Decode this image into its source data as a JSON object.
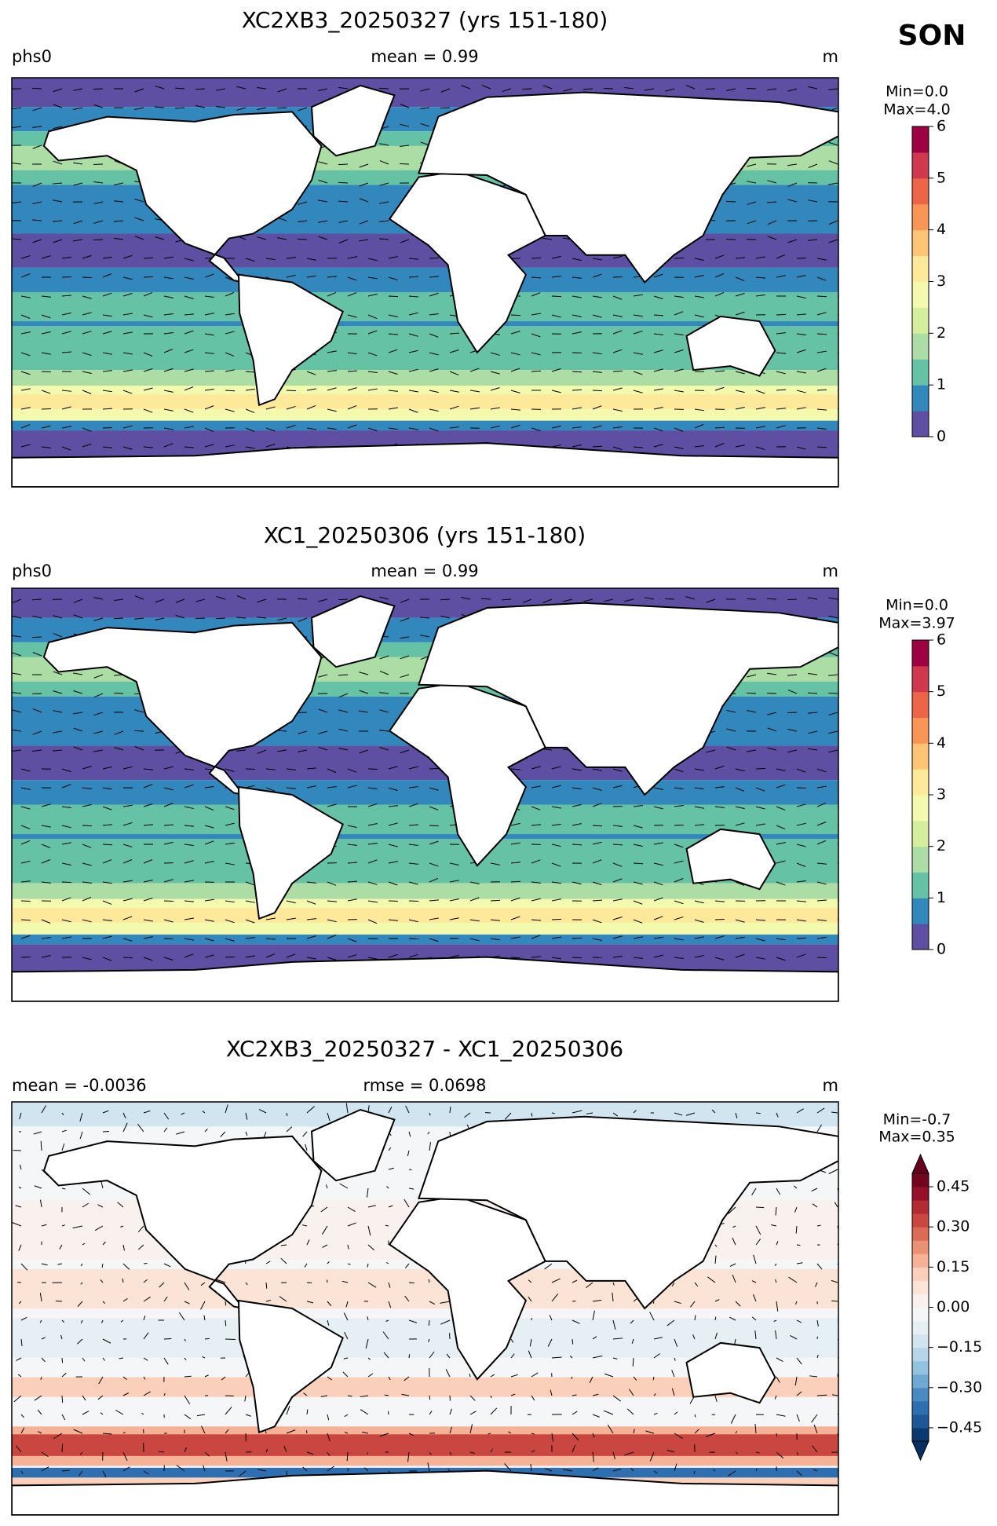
{
  "title": "SON",
  "panels": [
    {
      "title": "XC2XB3_20250327 (yrs 151-180)",
      "left_label": "phs0",
      "center_label": "mean = 0.99",
      "right_label": "m",
      "stats": [
        "Min=0.0",
        "Max=4.0"
      ],
      "colorbar": {
        "lim": [
          0,
          6
        ],
        "ticks": [
          0,
          1,
          2,
          3,
          4,
          5,
          6
        ],
        "extend": false,
        "colors": [
          "#5e4fa2",
          "#3288bd",
          "#66c2a5",
          "#abdda4",
          "#d5ee9b",
          "#f4faad",
          "#fee99b",
          "#fdc574",
          "#f99555",
          "#ec6547",
          "#d0384e",
          "#9e0142"
        ]
      }
    },
    {
      "title": "XC1_20250306 (yrs 151-180)",
      "left_label": "phs0",
      "center_label": "mean = 0.99",
      "right_label": "m",
      "stats": [
        "Min=0.0",
        "Max=3.97"
      ],
      "colorbar": {
        "lim": [
          0,
          6
        ],
        "ticks": [
          0,
          1,
          2,
          3,
          4,
          5,
          6
        ],
        "extend": false,
        "colors": [
          "#5e4fa2",
          "#3288bd",
          "#66c2a5",
          "#abdda4",
          "#d5ee9b",
          "#f4faad",
          "#fee99b",
          "#fdc574",
          "#f99555",
          "#ec6547",
          "#d0384e",
          "#9e0142"
        ]
      }
    },
    {
      "title": "XC2XB3_20250327 - XC1_20250306",
      "left_label": "mean = -0.0036",
      "center_label": "rmse = 0.0698",
      "right_label": "m",
      "stats": [
        "Min=-0.7",
        "Max=0.35"
      ],
      "colorbar": {
        "lim": [
          -0.5,
          0.5
        ],
        "ticks": [
          {
            "value": -0.45,
            "label": "−0.45"
          },
          {
            "value": -0.3,
            "label": "−0.30"
          },
          {
            "value": -0.15,
            "label": "−0.15"
          },
          {
            "value": 0,
            "label": "0.00"
          },
          0.15,
          {
            "value": 0.3,
            "label": "0.30"
          },
          0.45
        ],
        "extend": "both",
        "under_color": "#053061",
        "over_color": "#67001f",
        "colors": [
          "#0a3b70",
          "#1c5796",
          "#2d6fb0",
          "#4a8ac0",
          "#6fa9d1",
          "#93c4df",
          "#b4d6e8",
          "#d1e5f0",
          "#e6eff4",
          "#f4f6f7",
          "#f8f1ee",
          "#fbe3d6",
          "#fbd0bb",
          "#f6b296",
          "#eb9175",
          "#db6b55",
          "#c94740",
          "#b42a33",
          "#961127",
          "#75041f"
        ]
      }
    }
  ]
}
